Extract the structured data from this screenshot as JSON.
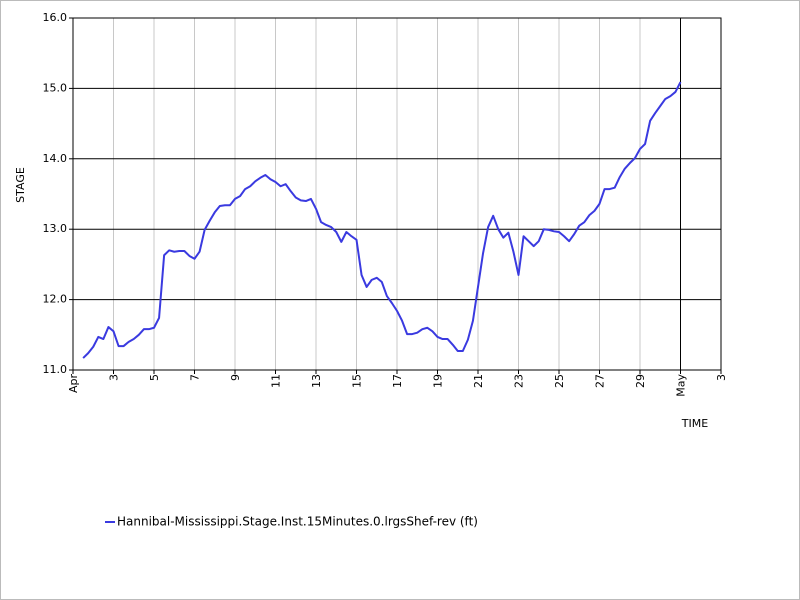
{
  "chart_data": {
    "type": "line",
    "xlabel": "TIME",
    "ylabel": "STAGE",
    "x": [
      0.5,
      0.75,
      1,
      1.25,
      1.5,
      1.75,
      2,
      2.25,
      2.5,
      2.75,
      3,
      3.25,
      3.5,
      3.75,
      4,
      4.25,
      4.5,
      4.75,
      5,
      5.25,
      5.5,
      5.75,
      6,
      6.25,
      6.5,
      6.75,
      7,
      7.25,
      7.5,
      7.75,
      8,
      8.25,
      8.5,
      8.75,
      9,
      9.25,
      9.5,
      9.75,
      10,
      10.25,
      10.5,
      10.75,
      11,
      11.25,
      11.5,
      11.75,
      12,
      12.25,
      12.5,
      12.75,
      13,
      13.25,
      13.5,
      13.75,
      14,
      14.25,
      14.5,
      14.75,
      15,
      15.25,
      15.5,
      15.75,
      16,
      16.25,
      16.5,
      16.75,
      17,
      17.25,
      17.5,
      17.75,
      18,
      18.25,
      18.5,
      18.75,
      19,
      19.25,
      19.5,
      19.75,
      20,
      20.25,
      20.5,
      20.75,
      21,
      21.25,
      21.5,
      21.75,
      22,
      22.25,
      22.5,
      22.75,
      23,
      23.25,
      23.5,
      23.75,
      24,
      24.25,
      24.5,
      24.75,
      25,
      25.25,
      25.5,
      25.75,
      26,
      26.25,
      26.5,
      26.75,
      27,
      27.25,
      27.5,
      27.75,
      28,
      28.25,
      28.5,
      28.75,
      29,
      29.25,
      29.5,
      29.75,
      30
    ],
    "series": [
      {
        "name": "Hannibal-Mississippi.Stage.Inst.15Minutes.0.lrgsShef-rev (ft)",
        "color": "#3a3ae0",
        "values": [
          11.17,
          11.24,
          11.33,
          11.47,
          11.44,
          11.61,
          11.55,
          11.34,
          11.34,
          11.4,
          11.44,
          11.5,
          11.58,
          11.58,
          11.6,
          11.74,
          12.63,
          12.7,
          12.68,
          12.69,
          12.69,
          12.62,
          12.58,
          12.68,
          12.99,
          13.12,
          13.24,
          13.33,
          13.34,
          13.34,
          13.43,
          13.47,
          13.57,
          13.61,
          13.68,
          13.73,
          13.77,
          13.71,
          13.67,
          13.61,
          13.64,
          13.54,
          13.45,
          13.41,
          13.4,
          13.43,
          13.29,
          13.1,
          13.06,
          13.03,
          12.96,
          12.82,
          12.96,
          12.9,
          12.85,
          12.35,
          12.18,
          12.28,
          12.31,
          12.25,
          12.05,
          11.95,
          11.84,
          11.7,
          11.51,
          11.51,
          11.53,
          11.58,
          11.6,
          11.55,
          11.47,
          11.44,
          11.44,
          11.36,
          11.27,
          11.27,
          11.43,
          11.7,
          12.18,
          12.66,
          13.03,
          13.19,
          13.0,
          12.88,
          12.95,
          12.68,
          12.35,
          12.9,
          12.83,
          12.76,
          12.83,
          13.0,
          12.99,
          12.97,
          12.96,
          12.9,
          12.83,
          12.93,
          13.05,
          13.1,
          13.2,
          13.26,
          13.36,
          13.57,
          13.57,
          13.59,
          13.74,
          13.86,
          13.94,
          14.01,
          14.14,
          14.21,
          14.54,
          14.65,
          14.75,
          14.85,
          14.89,
          14.95,
          15.09
        ]
      }
    ],
    "xlim": [
      0,
      32
    ],
    "xticks": [
      {
        "value": 0,
        "label": "Apr"
      },
      {
        "value": 2,
        "label": "3"
      },
      {
        "value": 4,
        "label": "5"
      },
      {
        "value": 6,
        "label": "7"
      },
      {
        "value": 8,
        "label": "9"
      },
      {
        "value": 10,
        "label": "11"
      },
      {
        "value": 12,
        "label": "13"
      },
      {
        "value": 14,
        "label": "15"
      },
      {
        "value": 16,
        "label": "17"
      },
      {
        "value": 18,
        "label": "19"
      },
      {
        "value": 20,
        "label": "21"
      },
      {
        "value": 22,
        "label": "23"
      },
      {
        "value": 24,
        "label": "25"
      },
      {
        "value": 26,
        "label": "27"
      },
      {
        "value": 28,
        "label": "29"
      },
      {
        "value": 30,
        "label": "May"
      },
      {
        "value": 32,
        "label": "3"
      }
    ],
    "ylim": [
      11,
      16
    ],
    "yticks": [
      {
        "value": 11,
        "label": "11.0"
      },
      {
        "value": 12,
        "label": "12.0"
      },
      {
        "value": 13,
        "label": "13.0"
      },
      {
        "value": 14,
        "label": "14.0"
      },
      {
        "value": 15,
        "label": "15.0"
      },
      {
        "value": 16,
        "label": "16.0"
      }
    ],
    "grid": true
  }
}
